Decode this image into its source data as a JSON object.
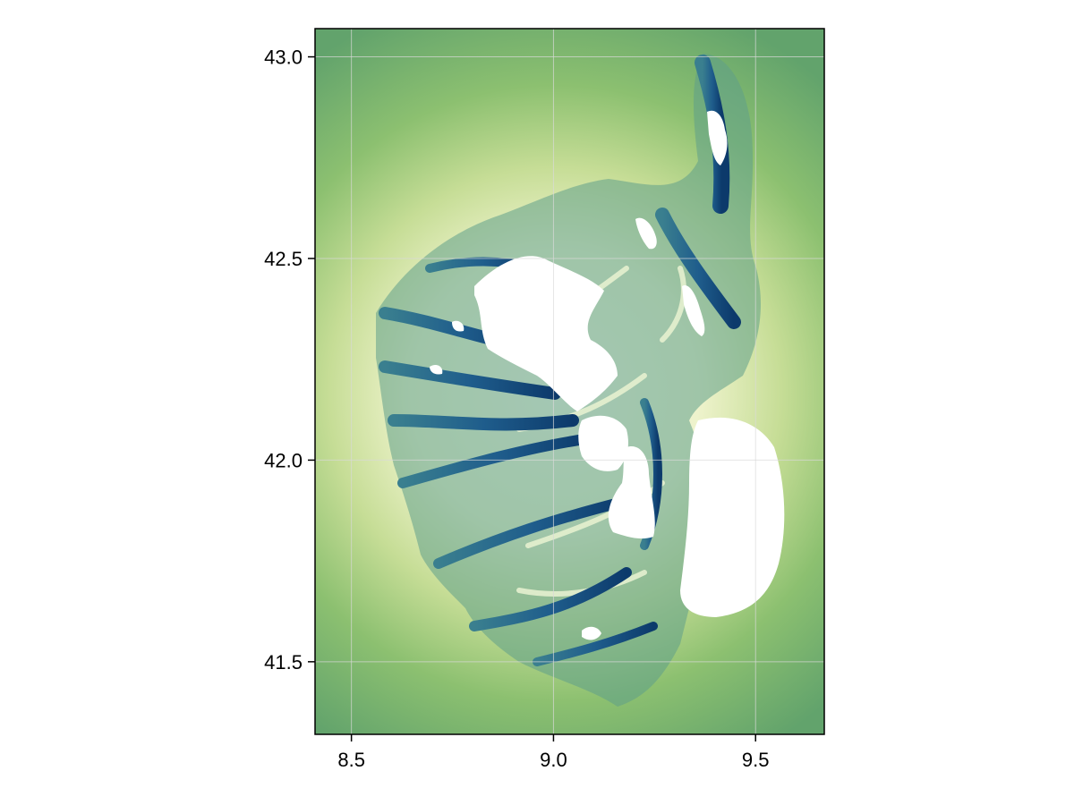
{
  "chart_data": {
    "type": "heatmap",
    "title": "",
    "xlabel": "",
    "ylabel": "",
    "xlim": [
      8.41,
      9.67
    ],
    "ylim": [
      41.32,
      43.07
    ],
    "x_ticks": [
      8.5,
      9.0,
      9.5
    ],
    "y_ticks": [
      41.5,
      42.0,
      42.5,
      43.0
    ],
    "x_tick_labels": [
      "8.5",
      "9.0",
      "9.5"
    ],
    "y_tick_labels": [
      "41.5",
      "42.0",
      "42.5",
      "43.0"
    ],
    "grid": true,
    "grid_color": "#d9d9d9",
    "colormap": {
      "name": "gist_earth-like",
      "stops": [
        "#5e9f6b",
        "#7ab865",
        "#c7dd95",
        "#f5f7dd",
        "#ffffff",
        "#4b8fae",
        "#1f5d8c",
        "#0c3a6b"
      ]
    },
    "missing_value_color": "#ffffff",
    "background_field_color": "#7ab865",
    "description_values": {
      "coast_halo_peak": "#f6f8e2",
      "ridge_color": "#0c3a6b",
      "plateau_color": "#ffffff"
    }
  }
}
